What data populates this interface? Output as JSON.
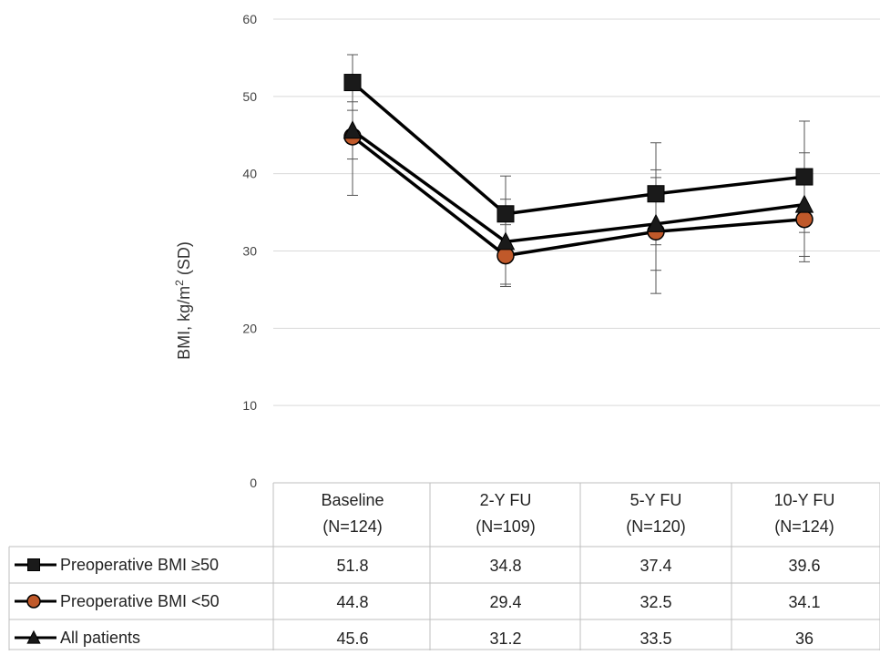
{
  "chart_data": {
    "type": "line",
    "ylabel_main": "BMI, kg/m",
    "ylabel_sup": "2",
    "ylabel_tail": " (SD)",
    "ylim": [
      0,
      60
    ],
    "yticks": [
      0,
      10,
      20,
      30,
      40,
      50,
      60
    ],
    "grid": true,
    "categories": [
      {
        "line1": "Baseline",
        "line2": "(N=124)"
      },
      {
        "line1": "2-Y FU",
        "line2": "(N=109)"
      },
      {
        "line1": "5-Y FU",
        "line2": "(N=120)"
      },
      {
        "line1": "10-Y FU",
        "line2": "(N=124)"
      }
    ],
    "series": [
      {
        "name": "Preoperative BMI ≥50",
        "marker": "square",
        "color": "#000000",
        "marker_fill": "#1a1a1a",
        "values": [
          51.8,
          34.8,
          37.4,
          39.6
        ],
        "sd": [
          3.6,
          4.9,
          6.6,
          7.2
        ]
      },
      {
        "name": "Preoperative BMI <50",
        "marker": "circle",
        "color": "#000000",
        "marker_fill": "#c0592a",
        "values": [
          44.8,
          29.4,
          32.5,
          34.1
        ],
        "sd": [
          7.6,
          4.0,
          8.0,
          5.5
        ]
      },
      {
        "name": "All patients",
        "marker": "triangle",
        "color": "#000000",
        "marker_fill": "#1a1a1a",
        "values": [
          45.6,
          31.2,
          33.5,
          36
        ],
        "sd": [
          3.7,
          5.5,
          6.0,
          6.7
        ]
      }
    ],
    "table_values": [
      [
        "51.8",
        "34.8",
        "37.4",
        "39.6"
      ],
      [
        "44.8",
        "29.4",
        "32.5",
        "34.1"
      ],
      [
        "45.6",
        "31.2",
        "33.5",
        "36"
      ]
    ]
  }
}
